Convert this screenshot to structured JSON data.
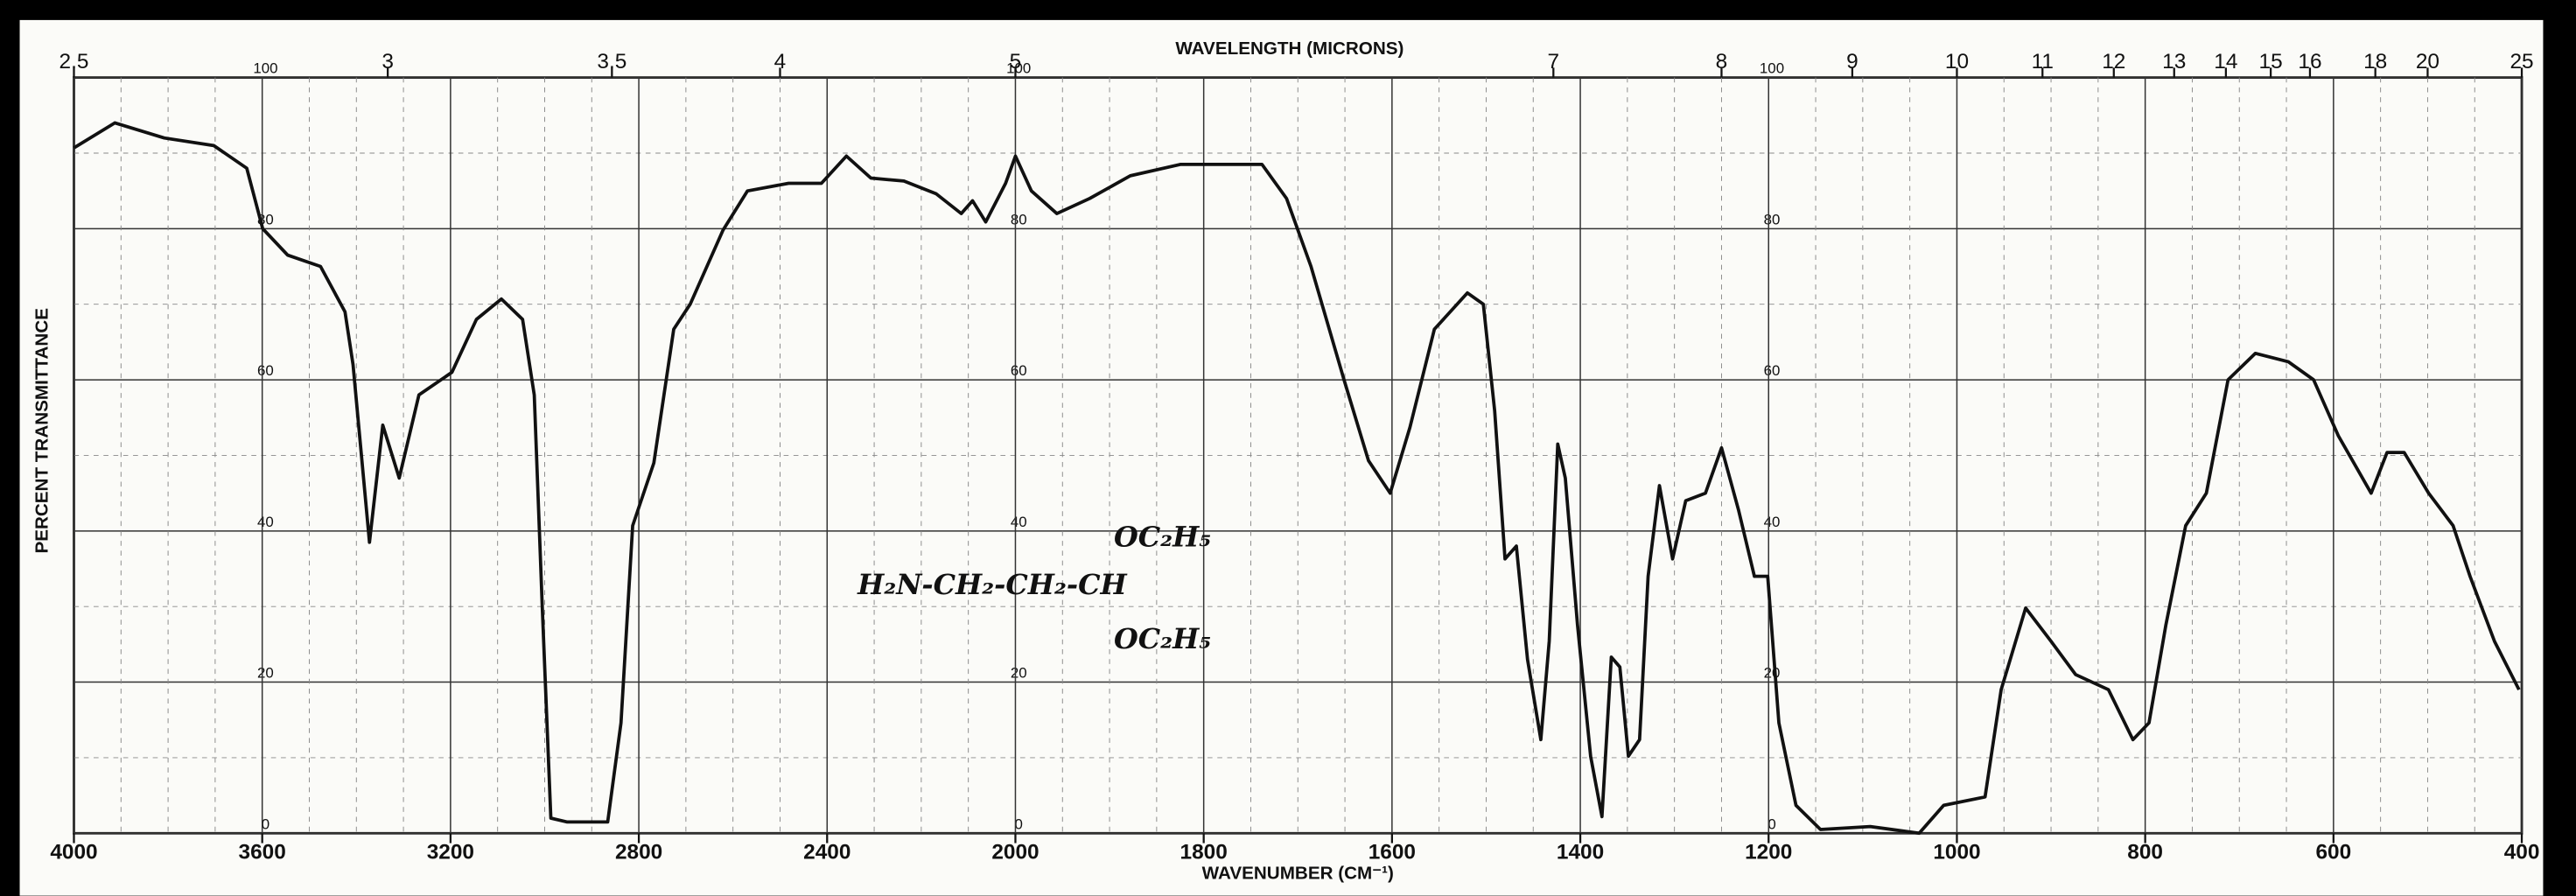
{
  "chart_data": {
    "type": "line",
    "title": "WAVELENGTH (MICRONS)",
    "x_label": "WAVENUMBER (CM⁻¹)",
    "y_label": "PERCENT TRANSMITTANCE",
    "annotations": [
      "H₂N-CH₂-CH₂-CH",
      "OC₂H₅",
      "OC₂H₅"
    ],
    "x": [
      4000,
      3913,
      3808,
      3703,
      3633,
      3599,
      3546,
      3476,
      3424,
      3407,
      3372,
      3344,
      3309,
      3267,
      3197,
      3145,
      3092,
      3047,
      3022,
      3005,
      2987,
      2953,
      2866,
      2838,
      2813,
      2768,
      2726,
      2691,
      2621,
      2569,
      2482,
      2412,
      2359,
      2307,
      2237,
      2168,
      2115,
      2091,
      2063,
      2021,
      2000,
      1983,
      1956,
      1921,
      1878,
      1825,
      1738,
      1712,
      1686,
      1651,
      1625,
      1602,
      1581,
      1555,
      1520,
      1503,
      1491,
      1480,
      1468,
      1456,
      1442,
      1433,
      1424,
      1416,
      1403,
      1389,
      1377,
      1367,
      1358,
      1349,
      1337,
      1328,
      1316,
      1302,
      1288,
      1267,
      1250,
      1232,
      1215,
      1201,
      1189,
      1171,
      1145,
      1092,
      1040,
      1014,
      970,
      953,
      927,
      900,
      874,
      839,
      813,
      796,
      778,
      757,
      735,
      712,
      683,
      648,
      621,
      595,
      560,
      543,
      525,
      499,
      473,
      455,
      429,
      403
    ],
    "series": [
      {
        "color": "#111111",
        "values": [
          90.7,
          94,
          92,
          91,
          88,
          80,
          76.5,
          75,
          69,
          62,
          38.5,
          54,
          47,
          58,
          61,
          68,
          70.7,
          68,
          58,
          29.8,
          2,
          1.5,
          1.5,
          14.6,
          40.7,
          49,
          66.7,
          70,
          79.8,
          85,
          86,
          86,
          89.6,
          86.7,
          86.3,
          84.6,
          82,
          83.7,
          80.9,
          86,
          89.6,
          85,
          82,
          84,
          87,
          88.5,
          88.5,
          84,
          75,
          60,
          49.3,
          45,
          53.7,
          66.7,
          71.5,
          70,
          55.9,
          36.3,
          38,
          23,
          12.4,
          25.4,
          51.5,
          47,
          27.6,
          10.2,
          2.2,
          23.3,
          22,
          10.2,
          12.4,
          34,
          46,
          36.3,
          44,
          45,
          51,
          42.8,
          34,
          34,
          14.6,
          3.7,
          0.5,
          0.9,
          0,
          3.7,
          4.8,
          19,
          29.8,
          25.4,
          21,
          19,
          12.4,
          14.6,
          27.6,
          40.7,
          45,
          60,
          63.5,
          62.4,
          60,
          52.6,
          45,
          50.4,
          50.4,
          45,
          40.7,
          34,
          25.4,
          19
        ]
      }
    ],
    "xlim": [
      4000,
      400
    ],
    "xticks": [
      4000,
      3600,
      3200,
      2800,
      2400,
      2000,
      1800,
      1600,
      1400,
      1200,
      1000,
      800,
      600,
      400
    ],
    "ylim": [
      0,
      100
    ],
    "yticks": [
      0,
      20,
      40,
      60,
      80,
      100
    ],
    "x2ticks": [
      2.5,
      3,
      3.5,
      4,
      5,
      7,
      8,
      9,
      10,
      11,
      12,
      13,
      14,
      15,
      16,
      18,
      20,
      25
    ],
    "grid": true
  }
}
